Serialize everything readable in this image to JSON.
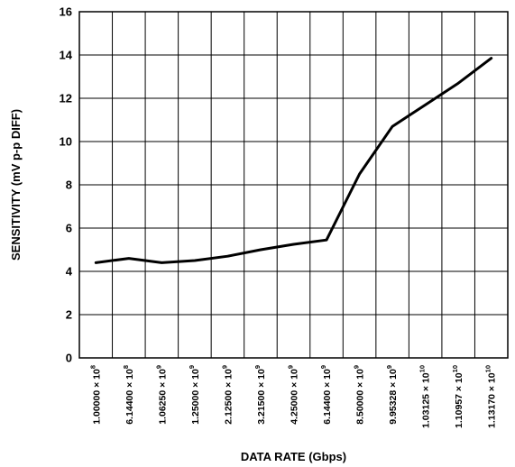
{
  "chart_data": {
    "type": "line",
    "title": "",
    "xlabel": "DATA RATE (Gbps)",
    "ylabel": "SENSITIVITY (mV p-p DIFF)",
    "ylim": [
      0,
      16
    ],
    "yticks": [
      "0",
      "2",
      "4",
      "6",
      "8",
      "10",
      "12",
      "14",
      "16"
    ],
    "grid": true,
    "legend": "none",
    "line_color": "#000000",
    "categories": [
      {
        "mantissa": "1.00000",
        "exponent": "8"
      },
      {
        "mantissa": "6.14400",
        "exponent": "8"
      },
      {
        "mantissa": "1.06250",
        "exponent": "9"
      },
      {
        "mantissa": "1.25000",
        "exponent": "9"
      },
      {
        "mantissa": "2.12500",
        "exponent": "9"
      },
      {
        "mantissa": "3.21500",
        "exponent": "9"
      },
      {
        "mantissa": "4.25000",
        "exponent": "9"
      },
      {
        "mantissa": "6.14400",
        "exponent": "9"
      },
      {
        "mantissa": "8.50000",
        "exponent": "9"
      },
      {
        "mantissa": "9.95328",
        "exponent": "9"
      },
      {
        "mantissa": "1.03125",
        "exponent": "10"
      },
      {
        "mantissa": "1.10957",
        "exponent": "10"
      },
      {
        "mantissa": "1.13170",
        "exponent": "10"
      }
    ],
    "values": [
      4.4,
      4.6,
      4.4,
      4.5,
      4.7,
      5.0,
      5.25,
      5.45,
      8.5,
      10.7,
      11.7,
      12.7,
      13.85
    ]
  }
}
